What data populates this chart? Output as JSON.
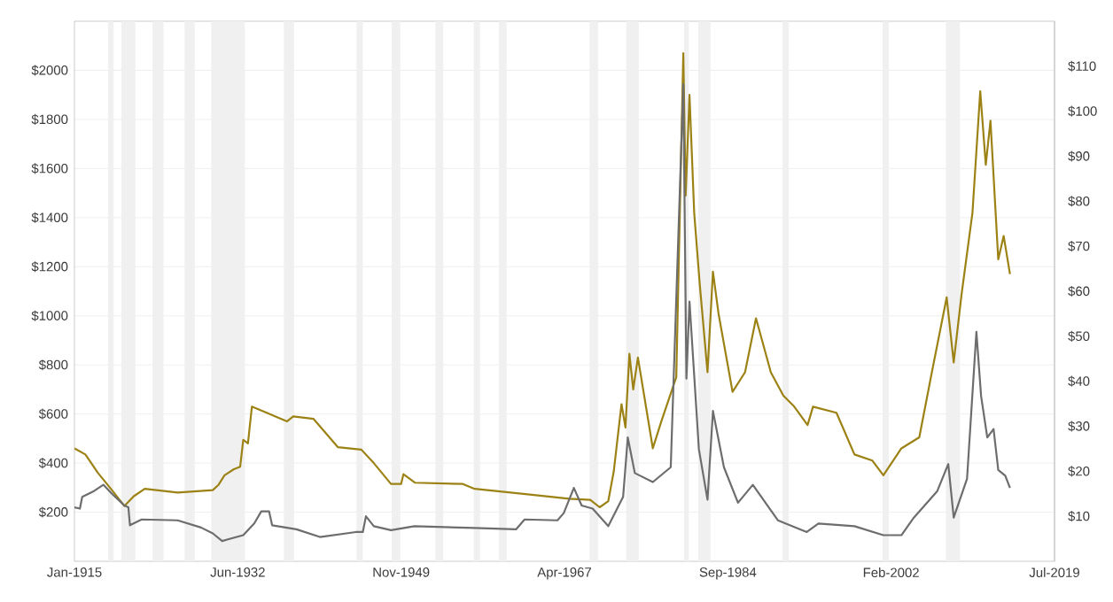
{
  "chart_data": {
    "type": "line",
    "grid": "y",
    "marker": "none",
    "xlim": [
      "1915-01",
      "2019-07"
    ],
    "xticks": [
      {
        "value": "1915-01",
        "label": "Jan-1915"
      },
      {
        "value": "1932-06",
        "label": "Jun-1932"
      },
      {
        "value": "1949-11",
        "label": "Nov-1949"
      },
      {
        "value": "1967-04",
        "label": "Apr-1967"
      },
      {
        "value": "1984-09",
        "label": "Sep-1984"
      },
      {
        "value": "2002-02",
        "label": "Feb-2002"
      },
      {
        "value": "2019-07",
        "label": "Jul-2019"
      }
    ],
    "ylim": [
      0,
      2200
    ],
    "yticks": [
      {
        "value": 200,
        "label": "$200"
      },
      {
        "value": 400,
        "label": "$400"
      },
      {
        "value": 600,
        "label": "$600"
      },
      {
        "value": 800,
        "label": "$800"
      },
      {
        "value": 1000,
        "label": "$1000"
      },
      {
        "value": 1200,
        "label": "$1200"
      },
      {
        "value": 1400,
        "label": "$1400"
      },
      {
        "value": 1600,
        "label": "$1600"
      },
      {
        "value": 1800,
        "label": "$1800"
      },
      {
        "value": 2000,
        "label": "$2000"
      }
    ],
    "y2lim": [
      0,
      120
    ],
    "y2ticks": [
      {
        "value": 10,
        "label": "$10"
      },
      {
        "value": 20,
        "label": "$20"
      },
      {
        "value": 30,
        "label": "$30"
      },
      {
        "value": 40,
        "label": "$40"
      },
      {
        "value": 50,
        "label": "$50"
      },
      {
        "value": 60,
        "label": "$60"
      },
      {
        "value": 70,
        "label": "$70"
      },
      {
        "value": 80,
        "label": "$80"
      },
      {
        "value": 90,
        "label": "$90"
      },
      {
        "value": 100,
        "label": "$100"
      },
      {
        "value": 110,
        "label": "$110"
      }
    ],
    "bands": [
      {
        "axis": "x",
        "from": "1918-08",
        "to": "1919-03",
        "color": "#f0f0f0"
      },
      {
        "axis": "x",
        "from": "1920-01",
        "to": "1921-07",
        "color": "#f0f0f0"
      },
      {
        "axis": "x",
        "from": "1923-05",
        "to": "1924-07",
        "color": "#f0f0f0"
      },
      {
        "axis": "x",
        "from": "1926-10",
        "to": "1927-11",
        "color": "#f0f0f0"
      },
      {
        "axis": "x",
        "from": "1929-08",
        "to": "1933-03",
        "color": "#f0f0f0"
      },
      {
        "axis": "x",
        "from": "1937-05",
        "to": "1938-06",
        "color": "#f0f0f0"
      },
      {
        "axis": "x",
        "from": "1945-02",
        "to": "1945-10",
        "color": "#f0f0f0"
      },
      {
        "axis": "x",
        "from": "1948-11",
        "to": "1949-10",
        "color": "#f0f0f0"
      },
      {
        "axis": "x",
        "from": "1953-07",
        "to": "1954-05",
        "color": "#f0f0f0"
      },
      {
        "axis": "x",
        "from": "1957-08",
        "to": "1958-04",
        "color": "#f0f0f0"
      },
      {
        "axis": "x",
        "from": "1960-04",
        "to": "1961-02",
        "color": "#f0f0f0"
      },
      {
        "axis": "x",
        "from": "1969-12",
        "to": "1970-11",
        "color": "#f0f0f0"
      },
      {
        "axis": "x",
        "from": "1973-11",
        "to": "1975-03",
        "color": "#f0f0f0"
      },
      {
        "axis": "x",
        "from": "1980-01",
        "to": "1980-07",
        "color": "#f0f0f0"
      },
      {
        "axis": "x",
        "from": "1981-07",
        "to": "1982-11",
        "color": "#f0f0f0"
      },
      {
        "axis": "x",
        "from": "1990-07",
        "to": "1991-03",
        "color": "#f0f0f0"
      },
      {
        "axis": "x",
        "from": "2001-03",
        "to": "2001-11",
        "color": "#f0f0f0"
      },
      {
        "axis": "x",
        "from": "2007-12",
        "to": "2009-06",
        "color": "#f0f0f0"
      }
    ],
    "series": [
      {
        "color": "#9c8214",
        "x": [
          "1915-01",
          "1916-03",
          "1917-07",
          "1919-01",
          "1920-05",
          "1921-05",
          "1922-07",
          "1926-01",
          "1929-10",
          "1930-05",
          "1931-01",
          "1932-01",
          "1932-09",
          "1933-01",
          "1933-07",
          "1933-12",
          "1935-07",
          "1937-09",
          "1938-05",
          "1940-07",
          "1943-02",
          "1945-08",
          "1946-12",
          "1948-10",
          "1949-11",
          "1950-02",
          "1951-05",
          "1956-06",
          "1957-09",
          "1964-01",
          "1967-10",
          "1970-01",
          "1971-01",
          "1971-12",
          "1972-07",
          "1973-05",
          "1973-10",
          "1974-03",
          "1974-08",
          "1975-02",
          "1976-09",
          "1977-08",
          "1979-03",
          "1979-12",
          "1980-03",
          "1980-08",
          "1981-02",
          "1981-09",
          "1982-07",
          "1983-02",
          "1983-09",
          "1985-03",
          "1986-07",
          "1987-09",
          "1989-04",
          "1990-08",
          "1991-10",
          "1993-03",
          "1993-10",
          "1996-04",
          "1998-03",
          "2000-02",
          "2001-04",
          "2003-03",
          "2005-02",
          "2006-06",
          "2008-01",
          "2008-10",
          "2009-08",
          "2010-10",
          "2011-08",
          "2012-03",
          "2012-09",
          "2013-07",
          "2014-02",
          "2014-10"
        ],
        "values": [
          460,
          435,
          360,
          290,
          225,
          265,
          295,
          280,
          290,
          310,
          350,
          375,
          385,
          495,
          480,
          630,
          605,
          570,
          590,
          580,
          465,
          455,
          400,
          315,
          315,
          355,
          320,
          315,
          295,
          270,
          255,
          250,
          220,
          245,
          365,
          640,
          545,
          845,
          700,
          830,
          460,
          570,
          750,
          2070,
          1490,
          1900,
          1420,
          1130,
          770,
          1180,
          1010,
          690,
          770,
          990,
          770,
          675,
          630,
          555,
          630,
          605,
          435,
          410,
          350,
          460,
          505,
          770,
          1075,
          810,
          1085,
          1420,
          1915,
          1615,
          1795,
          1230,
          1325,
          1170
        ]
      },
      {
        "color": "#6d6d6d",
        "axis": "y2",
        "x": [
          "1915-01",
          "1915-08",
          "1915-11",
          "1917-02",
          "1918-02",
          "1919-01",
          "1919-09",
          "1920-05",
          "1920-10",
          "1920-12",
          "1922-03",
          "1926-01",
          "1928-07",
          "1929-10",
          "1930-10",
          "1933-01",
          "1934-03",
          "1934-12",
          "1935-10",
          "1936-02",
          "1938-09",
          "1941-03",
          "1945-01",
          "1945-10",
          "1946-02",
          "1946-12",
          "1948-10",
          "1951-04",
          "1957-09",
          "1962-02",
          "1963-01",
          "1966-07",
          "1967-03",
          "1968-04",
          "1969-02",
          "1970-04",
          "1971-12",
          "1973-07",
          "1974-01",
          "1974-10",
          "1976-09",
          "1978-08",
          "1979-12",
          "1980-04",
          "1980-08",
          "1981-08",
          "1982-07",
          "1983-02",
          "1984-04",
          "1985-10",
          "1987-05",
          "1990-01",
          "1993-02",
          "1994-05",
          "1998-03",
          "2001-04",
          "2003-03",
          "2004-07",
          "2007-01",
          "2008-03",
          "2008-10",
          "2010-03",
          "2011-03",
          "2011-09",
          "2012-05",
          "2013-01",
          "2013-07",
          "2014-04",
          "2014-10"
        ],
        "values": [
          12,
          11.7,
          14.3,
          15.6,
          17,
          15,
          13.7,
          12.4,
          12,
          8,
          9.3,
          9.1,
          7.5,
          6.2,
          4.5,
          5.8,
          8.4,
          11.1,
          11.1,
          8,
          7.1,
          5.4,
          6.5,
          6.5,
          10,
          7.8,
          6.9,
          7.8,
          7.4,
          7.1,
          9.3,
          9.1,
          10.7,
          16.3,
          12.4,
          11.7,
          7.8,
          14.3,
          27.5,
          19.6,
          17.6,
          20.9,
          106,
          40.6,
          57.7,
          24.9,
          13.7,
          33.4,
          20.9,
          13,
          17,
          9.1,
          6.5,
          8.4,
          7.8,
          5.8,
          5.8,
          9.7,
          15.6,
          21.6,
          9.7,
          18.3,
          51,
          36.7,
          27.5,
          29.4,
          20.3,
          19,
          16.3
        ]
      }
    ]
  }
}
